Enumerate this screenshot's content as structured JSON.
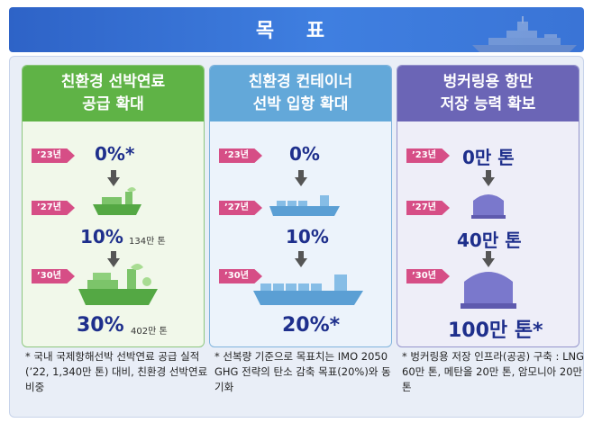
{
  "header": {
    "title": "목 표"
  },
  "columns": [
    {
      "title_line1": "친환경 선박연료",
      "title_line2": "공급 확대",
      "rows": [
        {
          "tag": "’23년",
          "value": "0%*",
          "sub": ""
        },
        {
          "tag": "’27년",
          "value": "10%",
          "sub": "134만 톤"
        },
        {
          "tag": "’30년",
          "value": "30%",
          "sub": "402만 톤"
        }
      ],
      "note": "* 국내 국제항해선박 선박연료 공급 실적(’22, 1,340만 톤) 대비, 친환경 선박연료 비중"
    },
    {
      "title_line1": "친환경 컨테이너",
      "title_line2": "선박 입항 확대",
      "rows": [
        {
          "tag": "’23년",
          "value": "0%",
          "sub": ""
        },
        {
          "tag": "’27년",
          "value": "10%",
          "sub": ""
        },
        {
          "tag": "’30년",
          "value": "20%*",
          "sub": ""
        }
      ],
      "note": "* 선복량 기준으로 목표치는 IMO 2050 GHG 전략의 탄소 감축 목표(20%)와 동기화"
    },
    {
      "title_line1": "벙커링용 항만",
      "title_line2": "저장 능력 확보",
      "rows": [
        {
          "tag": "’23년",
          "value": "0만 톤",
          "sub": ""
        },
        {
          "tag": "’27년",
          "value": "40만 톤",
          "sub": ""
        },
        {
          "tag": "’30년",
          "value": "100만 톤*",
          "sub": ""
        }
      ],
      "note": "* 벙커링용 저장 인프라(공공) 구축 : LNG 60만 톤, 메탄올 20만 톤, 암모니아 20만 톤"
    }
  ],
  "colors": {
    "green": "#5fb346",
    "blue": "#63a8d9",
    "purple": "#6b65b6",
    "tag": "#d64e86",
    "value": "#1e2f8c"
  }
}
